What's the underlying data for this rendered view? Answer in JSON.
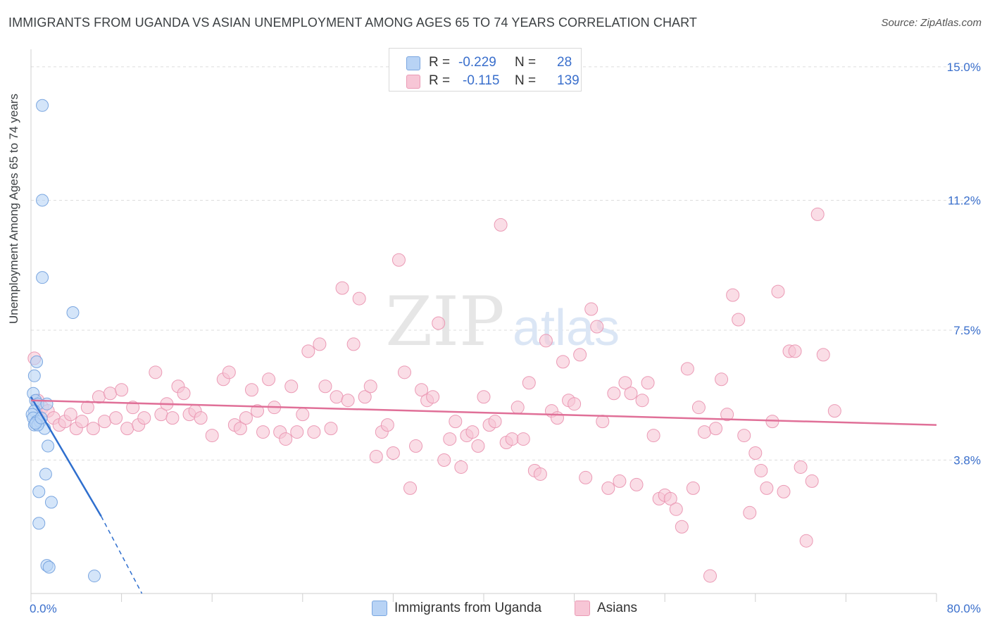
{
  "title": "IMMIGRANTS FROM UGANDA VS ASIAN UNEMPLOYMENT AMONG AGES 65 TO 74 YEARS CORRELATION CHART",
  "source": "Source: ZipAtlas.com",
  "watermark": {
    "zip": "ZIP",
    "atlas": "atlas"
  },
  "colors": {
    "blue_fill": "#b8d3f5",
    "blue_stroke": "#7aa6e0",
    "blue_line": "#2f6fce",
    "pink_fill": "#f7c6d6",
    "pink_stroke": "#eb9ab5",
    "pink_line": "#e07098",
    "tick_label": "#3a6fcc",
    "grid": "#dddddd"
  },
  "legend_top": [
    {
      "r_label": "R =",
      "r_value": "-0.229",
      "n_label": "N =",
      "n_value": "28",
      "color": "#b8d3f5"
    },
    {
      "r_label": "R =",
      "r_value": "-0.115",
      "n_label": "N =",
      "n_value": "139",
      "color": "#f7c6d6"
    }
  ],
  "legend_bottom": [
    {
      "label": "Immigrants from Uganda",
      "color": "#b8d3f5"
    },
    {
      "label": "Asians",
      "color": "#f7c6d6"
    }
  ],
  "chart_data": {
    "type": "scatter",
    "title": "IMMIGRANTS FROM UGANDA VS ASIAN UNEMPLOYMENT AMONG AGES 65 TO 74 YEARS CORRELATION CHART",
    "xlabel": "",
    "ylabel": "Unemployment Among Ages 65 to 74 years",
    "xlim": [
      0,
      80
    ],
    "ylim": [
      0,
      15.5
    ],
    "x_tick_labels": [
      {
        "value": 0,
        "label": "0.0%"
      },
      {
        "value": 80,
        "label": "80.0%"
      }
    ],
    "y_tick_labels": [
      {
        "value": 3.8,
        "label": "3.8%"
      },
      {
        "value": 7.5,
        "label": "7.5%"
      },
      {
        "value": 11.2,
        "label": "11.2%"
      },
      {
        "value": 15.0,
        "label": "15.0%"
      }
    ],
    "grid": "horizontal dashed",
    "legend_placement": "top-center and bottom-center",
    "series": [
      {
        "name": "Immigrants from Uganda",
        "color": "#b8d3f5",
        "points": [
          [
            1.0,
            13.9
          ],
          [
            1.0,
            11.2
          ],
          [
            1.0,
            9.0
          ],
          [
            3.7,
            8.0
          ],
          [
            0.5,
            6.6
          ],
          [
            0.3,
            6.2
          ],
          [
            0.2,
            5.7
          ],
          [
            0.4,
            5.5
          ],
          [
            0.6,
            5.4
          ],
          [
            0.3,
            5.2
          ],
          [
            0.1,
            5.1
          ],
          [
            0.2,
            5.0
          ],
          [
            0.5,
            4.9
          ],
          [
            0.3,
            4.8
          ],
          [
            0.8,
            4.9
          ],
          [
            1.2,
            4.7
          ],
          [
            0.6,
            4.8
          ],
          [
            1.4,
            5.4
          ],
          [
            1.5,
            4.2
          ],
          [
            1.3,
            3.4
          ],
          [
            0.7,
            2.9
          ],
          [
            1.8,
            2.6
          ],
          [
            0.7,
            2.0
          ],
          [
            1.4,
            0.8
          ],
          [
            1.6,
            0.75
          ],
          [
            5.6,
            0.5
          ],
          [
            0.4,
            4.85
          ],
          [
            0.9,
            5.0
          ]
        ],
        "trend": {
          "x0": 0,
          "y0": 5.6,
          "x1": 6.2,
          "y1": 2.2,
          "dashed_to_x": 9.8,
          "dashed_to_y": 0
        }
      },
      {
        "name": "Asians",
        "color": "#f7c6d6",
        "points": [
          [
            0.3,
            6.7
          ],
          [
            0.6,
            5.5
          ],
          [
            1.0,
            5.3
          ],
          [
            1.5,
            5.2
          ],
          [
            2.0,
            5.0
          ],
          [
            2.5,
            4.8
          ],
          [
            3.0,
            4.9
          ],
          [
            3.5,
            5.1
          ],
          [
            4.0,
            4.7
          ],
          [
            4.5,
            4.9
          ],
          [
            5.0,
            5.3
          ],
          [
            5.5,
            4.7
          ],
          [
            6.0,
            5.6
          ],
          [
            6.5,
            4.9
          ],
          [
            7.0,
            5.7
          ],
          [
            7.5,
            5.0
          ],
          [
            8.0,
            5.8
          ],
          [
            8.5,
            4.7
          ],
          [
            9.0,
            5.3
          ],
          [
            9.5,
            4.8
          ],
          [
            10.0,
            5.0
          ],
          [
            11.0,
            6.3
          ],
          [
            11.5,
            5.1
          ],
          [
            12.0,
            5.4
          ],
          [
            12.5,
            5.0
          ],
          [
            13.0,
            5.9
          ],
          [
            13.5,
            5.7
          ],
          [
            14.0,
            5.1
          ],
          [
            14.5,
            5.2
          ],
          [
            15.0,
            5.0
          ],
          [
            16.0,
            4.5
          ],
          [
            17.0,
            6.1
          ],
          [
            17.5,
            6.3
          ],
          [
            18.0,
            4.8
          ],
          [
            18.5,
            4.7
          ],
          [
            19.0,
            5.0
          ],
          [
            19.5,
            5.8
          ],
          [
            20.0,
            5.2
          ],
          [
            20.5,
            4.6
          ],
          [
            21.0,
            6.1
          ],
          [
            21.5,
            5.3
          ],
          [
            22.0,
            4.6
          ],
          [
            22.5,
            4.4
          ],
          [
            23.0,
            5.9
          ],
          [
            23.5,
            4.6
          ],
          [
            24.0,
            5.1
          ],
          [
            24.5,
            6.9
          ],
          [
            25.0,
            4.6
          ],
          [
            25.5,
            7.1
          ],
          [
            26.0,
            5.9
          ],
          [
            26.5,
            4.7
          ],
          [
            27.0,
            5.6
          ],
          [
            27.5,
            8.7
          ],
          [
            28.0,
            5.5
          ],
          [
            28.5,
            7.1
          ],
          [
            29.0,
            8.4
          ],
          [
            29.5,
            5.6
          ],
          [
            30.0,
            5.9
          ],
          [
            30.5,
            3.9
          ],
          [
            31.0,
            4.6
          ],
          [
            31.5,
            4.8
          ],
          [
            32.0,
            4.0
          ],
          [
            32.5,
            9.5
          ],
          [
            33.0,
            6.3
          ],
          [
            33.5,
            3.0
          ],
          [
            34.0,
            4.2
          ],
          [
            34.5,
            5.8
          ],
          [
            35.0,
            5.5
          ],
          [
            35.5,
            5.6
          ],
          [
            36.0,
            7.7
          ],
          [
            36.5,
            3.8
          ],
          [
            37.0,
            4.4
          ],
          [
            37.5,
            4.9
          ],
          [
            38.0,
            3.6
          ],
          [
            38.5,
            4.5
          ],
          [
            39.0,
            4.6
          ],
          [
            39.5,
            4.2
          ],
          [
            40.0,
            5.6
          ],
          [
            40.5,
            4.8
          ],
          [
            41.0,
            4.9
          ],
          [
            41.5,
            10.5
          ],
          [
            42.0,
            4.3
          ],
          [
            42.5,
            4.4
          ],
          [
            43.0,
            5.3
          ],
          [
            43.5,
            4.4
          ],
          [
            44.0,
            6.0
          ],
          [
            44.5,
            3.5
          ],
          [
            45.0,
            3.4
          ],
          [
            45.5,
            7.2
          ],
          [
            46.0,
            5.2
          ],
          [
            46.5,
            5.0
          ],
          [
            47.0,
            6.6
          ],
          [
            47.5,
            5.5
          ],
          [
            48.0,
            5.4
          ],
          [
            48.5,
            6.8
          ],
          [
            49.0,
            3.3
          ],
          [
            49.5,
            8.1
          ],
          [
            50.0,
            7.6
          ],
          [
            50.5,
            4.9
          ],
          [
            51.0,
            3.0
          ],
          [
            51.5,
            5.7
          ],
          [
            52.0,
            3.2
          ],
          [
            52.5,
            6.0
          ],
          [
            53.0,
            5.7
          ],
          [
            53.5,
            3.1
          ],
          [
            54.0,
            5.5
          ],
          [
            54.5,
            6.0
          ],
          [
            55.0,
            4.5
          ],
          [
            55.5,
            2.7
          ],
          [
            56.0,
            2.8
          ],
          [
            56.5,
            2.7
          ],
          [
            57.0,
            2.4
          ],
          [
            57.5,
            1.9
          ],
          [
            58.0,
            6.4
          ],
          [
            58.5,
            3.0
          ],
          [
            59.0,
            5.3
          ],
          [
            59.5,
            4.6
          ],
          [
            60.0,
            0.5
          ],
          [
            60.5,
            4.7
          ],
          [
            61.0,
            6.1
          ],
          [
            61.5,
            5.1
          ],
          [
            62.0,
            8.5
          ],
          [
            62.5,
            7.8
          ],
          [
            63.0,
            4.5
          ],
          [
            63.5,
            2.3
          ],
          [
            64.0,
            4.0
          ],
          [
            64.5,
            3.5
          ],
          [
            65.0,
            3.0
          ],
          [
            65.5,
            4.9
          ],
          [
            66.0,
            8.6
          ],
          [
            66.5,
            2.9
          ],
          [
            67.0,
            6.9
          ],
          [
            67.5,
            6.9
          ],
          [
            68.0,
            3.6
          ],
          [
            68.5,
            1.5
          ],
          [
            69.0,
            3.2
          ],
          [
            69.5,
            10.8
          ],
          [
            70.0,
            6.8
          ],
          [
            71.0,
            5.2
          ]
        ],
        "trend": {
          "x0": 0,
          "y0": 5.5,
          "x1": 80,
          "y1": 4.8
        }
      }
    ]
  }
}
